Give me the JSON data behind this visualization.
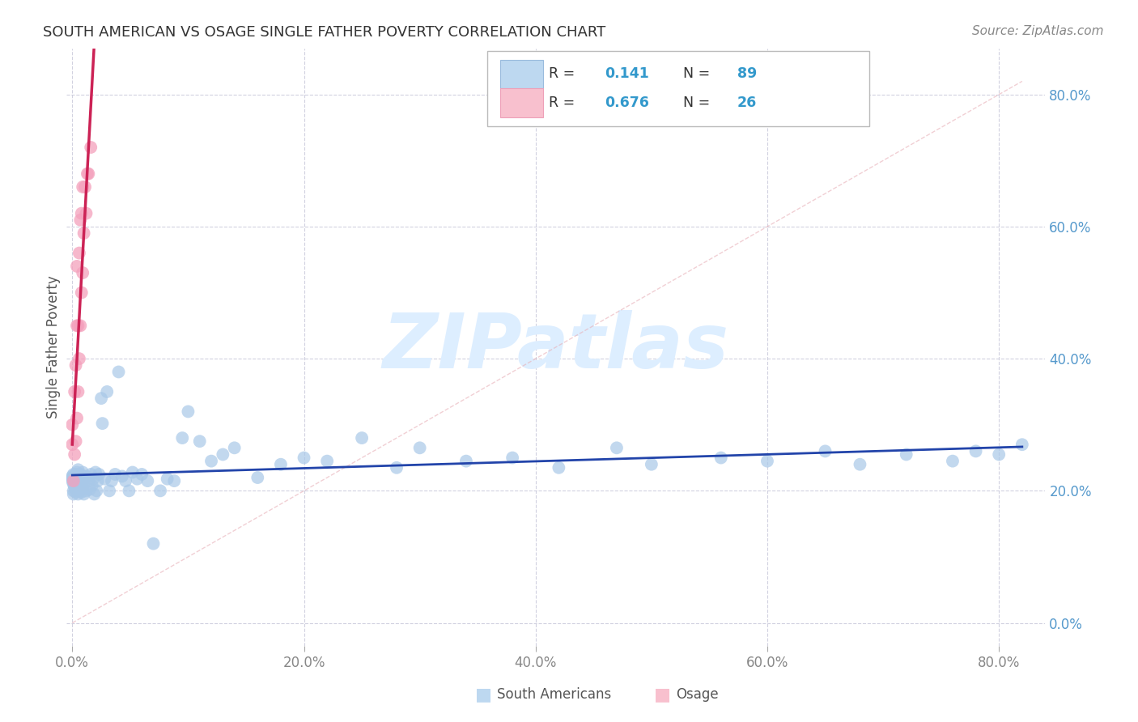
{
  "title": "SOUTH AMERICAN VS OSAGE SINGLE FATHER POVERTY CORRELATION CHART",
  "source": "Source: ZipAtlas.com",
  "ylabel": "Single Father Poverty",
  "blue_color": "#A8C8E8",
  "pink_color": "#F4A0BC",
  "blue_line_color": "#2244AA",
  "pink_line_color": "#CC2255",
  "diag_color": "#DDBBBB",
  "watermark": "ZIPatlas",
  "watermark_color": "#DDEEFF",
  "grid_color": "#CCCCDD",
  "title_color": "#333333",
  "source_color": "#888888",
  "ylabel_color": "#555555",
  "tick_color_y": "#5599CC",
  "tick_color_x": "#888888",
  "legend_r1": "0.141",
  "legend_n1": "89",
  "legend_r2": "0.676",
  "legend_n2": "26",
  "blue_x": [
    0.0,
    0.0,
    0.0,
    0.0,
    0.001,
    0.001,
    0.001,
    0.001,
    0.002,
    0.002,
    0.002,
    0.002,
    0.003,
    0.003,
    0.003,
    0.004,
    0.004,
    0.004,
    0.005,
    0.005,
    0.005,
    0.006,
    0.006,
    0.007,
    0.007,
    0.008,
    0.008,
    0.009,
    0.009,
    0.01,
    0.01,
    0.012,
    0.012,
    0.014,
    0.015,
    0.016,
    0.017,
    0.018,
    0.019,
    0.02,
    0.021,
    0.022,
    0.023,
    0.025,
    0.026,
    0.028,
    0.03,
    0.032,
    0.034,
    0.037,
    0.04,
    0.043,
    0.046,
    0.049,
    0.052,
    0.056,
    0.06,
    0.065,
    0.07,
    0.076,
    0.082,
    0.088,
    0.095,
    0.1,
    0.11,
    0.12,
    0.13,
    0.14,
    0.16,
    0.18,
    0.2,
    0.22,
    0.25,
    0.28,
    0.3,
    0.34,
    0.38,
    0.42,
    0.47,
    0.5,
    0.56,
    0.6,
    0.65,
    0.68,
    0.72,
    0.76,
    0.78,
    0.8,
    0.82
  ],
  "blue_y": [
    0.22,
    0.215,
    0.218,
    0.222,
    0.2,
    0.21,
    0.195,
    0.225,
    0.205,
    0.215,
    0.22,
    0.208,
    0.198,
    0.212,
    0.225,
    0.202,
    0.218,
    0.228,
    0.195,
    0.215,
    0.232,
    0.2,
    0.22,
    0.208,
    0.225,
    0.198,
    0.215,
    0.205,
    0.228,
    0.195,
    0.218,
    0.222,
    0.2,
    0.215,
    0.202,
    0.225,
    0.208,
    0.218,
    0.195,
    0.228,
    0.2,
    0.215,
    0.225,
    0.34,
    0.302,
    0.218,
    0.35,
    0.2,
    0.215,
    0.225,
    0.38,
    0.222,
    0.215,
    0.2,
    0.228,
    0.218,
    0.225,
    0.215,
    0.12,
    0.2,
    0.218,
    0.215,
    0.28,
    0.32,
    0.275,
    0.245,
    0.255,
    0.265,
    0.22,
    0.24,
    0.25,
    0.245,
    0.28,
    0.235,
    0.265,
    0.245,
    0.25,
    0.235,
    0.265,
    0.24,
    0.25,
    0.245,
    0.26,
    0.24,
    0.255,
    0.245,
    0.26,
    0.255,
    0.27
  ],
  "pink_x": [
    0.0,
    0.0,
    0.001,
    0.002,
    0.002,
    0.003,
    0.003,
    0.004,
    0.004,
    0.004,
    0.005,
    0.005,
    0.006,
    0.006,
    0.007,
    0.007,
    0.008,
    0.008,
    0.009,
    0.009,
    0.01,
    0.011,
    0.012,
    0.013,
    0.014,
    0.016
  ],
  "pink_y": [
    0.27,
    0.3,
    0.215,
    0.255,
    0.35,
    0.275,
    0.39,
    0.31,
    0.45,
    0.54,
    0.35,
    0.45,
    0.4,
    0.56,
    0.45,
    0.61,
    0.5,
    0.62,
    0.53,
    0.66,
    0.59,
    0.66,
    0.62,
    0.68,
    0.68,
    0.72
  ]
}
